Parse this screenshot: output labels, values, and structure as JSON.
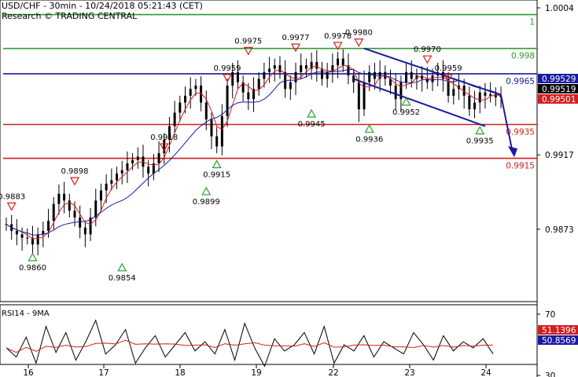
{
  "header": {
    "title": "USD/CHF - 30min - 10/24/2018 05:21:43 (CET)",
    "source": "Research © TRADING CENTRAL"
  },
  "chart_data": [
    {
      "type": "line",
      "instrument": "USD/CHF",
      "timeframe": "30min",
      "x_labels": [
        "16",
        "17",
        "18",
        "19",
        "22",
        "23",
        "24"
      ],
      "y_axis_labels": [
        "1.0004",
        "0.9917",
        "0.9873"
      ],
      "ylim": [
        0.983,
        1.0006
      ],
      "horizontal_levels": [
        {
          "value": 1.0,
          "label": "1",
          "color": "#2e9b2e"
        },
        {
          "value": 0.998,
          "label": "0.998",
          "color": "#2e9b2e"
        },
        {
          "value": 0.9965,
          "label": "0.9965",
          "color": "#1a1aa0"
        },
        {
          "value": 0.9935,
          "label": "0.9935",
          "color": "#d21e1e"
        },
        {
          "value": 0.9915,
          "label": "0.9915",
          "color": "#d21e1e"
        }
      ],
      "price_boxes": [
        {
          "label": "0.99529",
          "value": 0.99529,
          "bg": "#1a1aa0",
          "fg": "#ffffff"
        },
        {
          "label": "0.99519",
          "value": 0.99519,
          "bg": "#000000",
          "fg": "#ffffff"
        },
        {
          "label": "0.99501",
          "value": 0.99501,
          "bg": "#d21e1e",
          "fg": "#ffffff"
        }
      ],
      "swing_labels": [
        {
          "label": "0.9883",
          "kind": "high"
        },
        {
          "label": "0.9860",
          "kind": "low"
        },
        {
          "label": "0.9898",
          "kind": "high"
        },
        {
          "label": "0.9854",
          "kind": "low"
        },
        {
          "label": "0.9918",
          "kind": "high"
        },
        {
          "label": "0.9899",
          "kind": "low"
        },
        {
          "label": "0.9959",
          "kind": "high"
        },
        {
          "label": "0.9975",
          "kind": "high"
        },
        {
          "label": "0.9915",
          "kind": "low"
        },
        {
          "label": "0.9977",
          "kind": "high"
        },
        {
          "label": "0.9945",
          "kind": "low"
        },
        {
          "label": "0.9978",
          "kind": "high"
        },
        {
          "label": "0.9980",
          "kind": "high"
        },
        {
          "label": "0.9936",
          "kind": "low"
        },
        {
          "label": "0.9952",
          "kind": "low"
        },
        {
          "label": "0.9970",
          "kind": "high"
        },
        {
          "label": "0.9959",
          "kind": "high"
        },
        {
          "label": "0.9935",
          "kind": "low"
        }
      ],
      "close_series": [
        0.9876,
        0.9872,
        0.987,
        0.9868,
        0.9868,
        0.9864,
        0.987,
        0.9872,
        0.9878,
        0.9888,
        0.9894,
        0.989,
        0.9884,
        0.988,
        0.9874,
        0.987,
        0.988,
        0.989,
        0.9896,
        0.99,
        0.9902,
        0.9906,
        0.9908,
        0.9912,
        0.9914,
        0.9916,
        0.991,
        0.9906,
        0.9912,
        0.9918,
        0.9926,
        0.9934,
        0.9942,
        0.9948,
        0.9952,
        0.9956,
        0.9958,
        0.9948,
        0.9938,
        0.9928,
        0.9922,
        0.994,
        0.9958,
        0.9966,
        0.996,
        0.9954,
        0.995,
        0.9956,
        0.9962,
        0.9966,
        0.9968,
        0.997,
        0.9966,
        0.9956,
        0.996,
        0.9966,
        0.997,
        0.9968,
        0.9972,
        0.9968,
        0.9962,
        0.9966,
        0.997,
        0.9974,
        0.997,
        0.9964,
        0.996,
        0.9944,
        0.996,
        0.9966,
        0.9962,
        0.9966,
        0.9962,
        0.9958,
        0.995,
        0.996,
        0.9966,
        0.9962,
        0.9964,
        0.9962,
        0.996,
        0.9964,
        0.9966,
        0.9962,
        0.9952,
        0.9956,
        0.9958,
        0.9952,
        0.9944,
        0.9948,
        0.9954,
        0.9952,
        0.9953,
        0.9951,
        0.9952
      ],
      "overlay_lines": [
        "fast moving average (red)",
        "slow moving average (blue)"
      ],
      "channel": {
        "color": "#1a1aa0",
        "projection": "down to 0.9915"
      }
    },
    {
      "type": "line",
      "title": "RSI14 - 9MA",
      "y_axis_labels": [
        "70",
        "30"
      ],
      "ylim": [
        20,
        80
      ],
      "price_boxes": [
        {
          "label": "51.1396",
          "value": 51.1396,
          "bg": "#d21e1e",
          "fg": "#ffffff"
        },
        {
          "label": "50.8569",
          "value": 50.8569,
          "bg": "#1a1aa0",
          "fg": "#ffffff"
        }
      ],
      "rsi_series": [
        48,
        42,
        55,
        38,
        62,
        45,
        58,
        40,
        52,
        66,
        44,
        50,
        60,
        38,
        48,
        56,
        42,
        50,
        58,
        46,
        52,
        44,
        60,
        40,
        64,
        48,
        36,
        54,
        46,
        50,
        58,
        44,
        62,
        38,
        50,
        46,
        56,
        42,
        52,
        48,
        44,
        58,
        50,
        40,
        56,
        46,
        52,
        48,
        54,
        44
      ]
    }
  ]
}
